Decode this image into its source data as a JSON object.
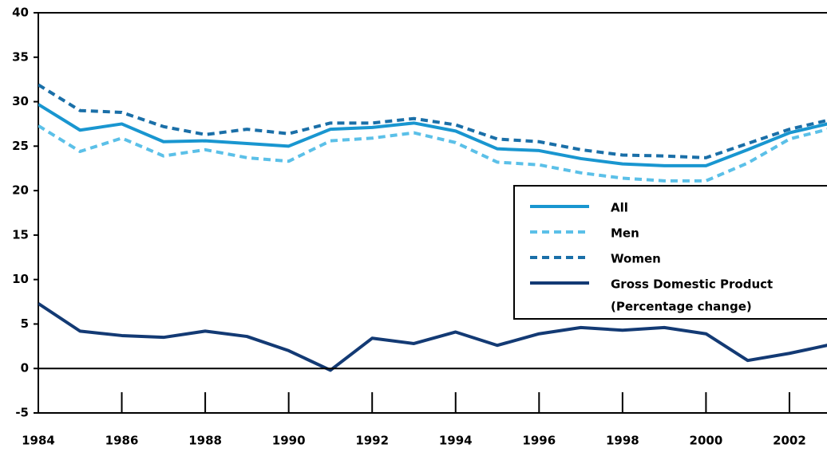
{
  "chart_data": {
    "type": "line",
    "x": [
      1984,
      1985,
      1986,
      1987,
      1988,
      1989,
      1990,
      1991,
      1992,
      1993,
      1994,
      1995,
      1996,
      1997,
      1998,
      1999,
      2000,
      2001,
      2002,
      2003
    ],
    "xlim": [
      1984,
      2002.9
    ],
    "xticks": [
      1984,
      1986,
      1988,
      1990,
      1992,
      1994,
      1996,
      1998,
      2000,
      2002
    ],
    "ylim": [
      -5,
      40
    ],
    "yticks": [
      -5,
      0,
      5,
      10,
      15,
      20,
      25,
      30,
      35,
      40
    ],
    "series": [
      {
        "name": "All",
        "color": "#1996d0",
        "dashed": false,
        "values": [
          29.7,
          26.8,
          27.5,
          25.5,
          25.6,
          25.3,
          25.0,
          26.9,
          27.1,
          27.6,
          26.7,
          24.7,
          24.5,
          23.6,
          23.0,
          22.8,
          22.8,
          24.6,
          26.5,
          27.6
        ]
      },
      {
        "name": "Men",
        "color": "#5bc0e8",
        "dashed": true,
        "values": [
          27.3,
          24.4,
          25.9,
          23.9,
          24.6,
          23.7,
          23.3,
          25.6,
          25.9,
          26.5,
          25.4,
          23.2,
          22.9,
          22.0,
          21.4,
          21.1,
          21.1,
          23.1,
          25.8,
          27.0
        ]
      },
      {
        "name": "Women",
        "color": "#1a6fa8",
        "dashed": true,
        "values": [
          31.9,
          29.0,
          28.8,
          27.2,
          26.3,
          26.9,
          26.4,
          27.6,
          27.6,
          28.1,
          27.4,
          25.8,
          25.5,
          24.6,
          24.0,
          23.9,
          23.7,
          25.3,
          26.9,
          28.0
        ]
      },
      {
        "name": "Gross Domestic Product",
        "note": "(Percentage change)",
        "color": "#133a74",
        "dashed": false,
        "values": [
          7.3,
          4.2,
          3.7,
          3.5,
          4.2,
          3.6,
          2.0,
          -0.2,
          3.4,
          2.8,
          4.1,
          2.6,
          3.9,
          4.6,
          4.3,
          4.6,
          3.9,
          0.9,
          1.7,
          2.7
        ]
      }
    ]
  }
}
